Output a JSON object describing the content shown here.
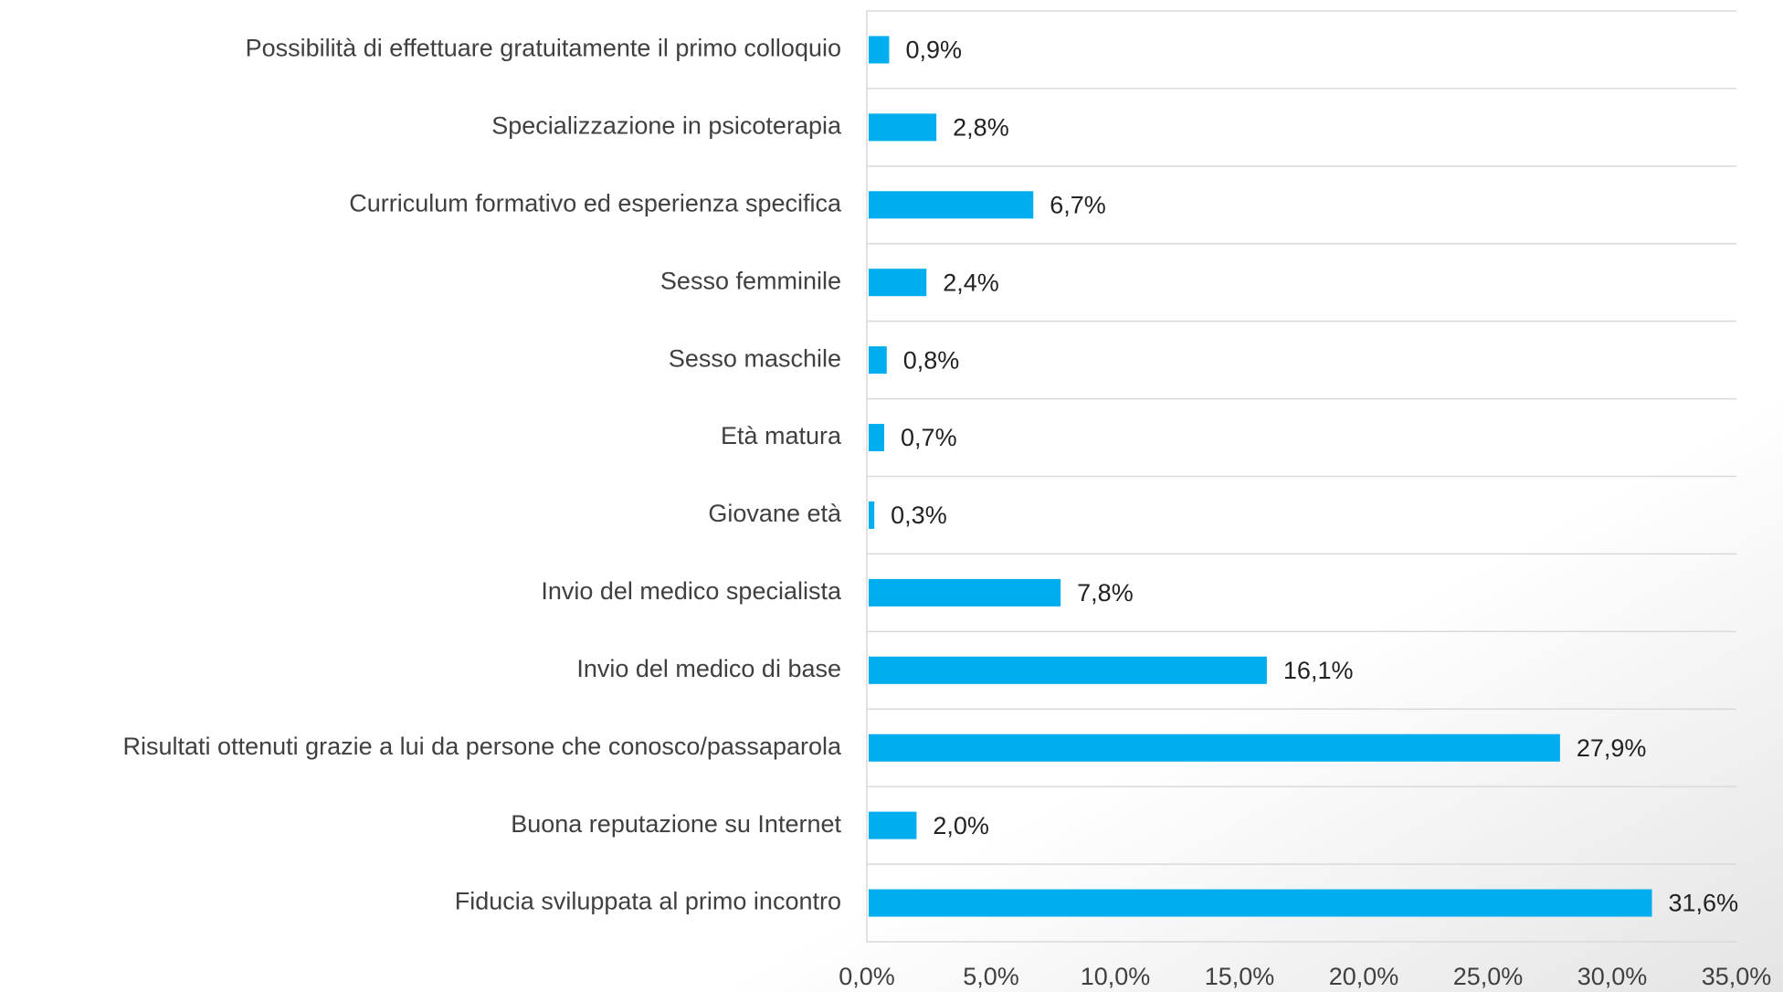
{
  "chart_data": {
    "type": "barh",
    "categories": [
      "Possibilità di effettuare gratuitamente il primo colloquio",
      "Specializzazione in psicoterapia",
      "Curriculum formativo ed esperienza specifica",
      "Sesso femminile",
      "Sesso maschile",
      "Età matura",
      "Giovane età",
      "Invio del medico specialista",
      "Invio del medico di base",
      "Risultati ottenuti grazie a lui da persone che conosco/passaparola",
      "Buona reputazione su Internet",
      "Fiducia sviluppata al primo incontro"
    ],
    "values": [
      0.9,
      2.8,
      6.7,
      2.4,
      0.8,
      0.7,
      0.3,
      7.8,
      16.1,
      27.9,
      2.0,
      31.6
    ],
    "value_labels": [
      "0,9%",
      "2,8%",
      "6,7%",
      "2,4%",
      "0,8%",
      "0,7%",
      "0,3%",
      "7,8%",
      "16,1%",
      "27,9%",
      "2,0%",
      "31,6%"
    ],
    "color": "#00aeef",
    "xlim": [
      0,
      35
    ],
    "xticks": [
      {
        "value": 0,
        "label": "0,0%"
      },
      {
        "value": 5,
        "label": "5,0%"
      },
      {
        "value": 10,
        "label": "10,0%"
      },
      {
        "value": 15,
        "label": "15,0%"
      },
      {
        "value": 20,
        "label": "20,0%"
      },
      {
        "value": 25,
        "label": "25,0%"
      },
      {
        "value": 30,
        "label": "30,0%"
      },
      {
        "value": 35,
        "label": "35,0%"
      }
    ]
  }
}
